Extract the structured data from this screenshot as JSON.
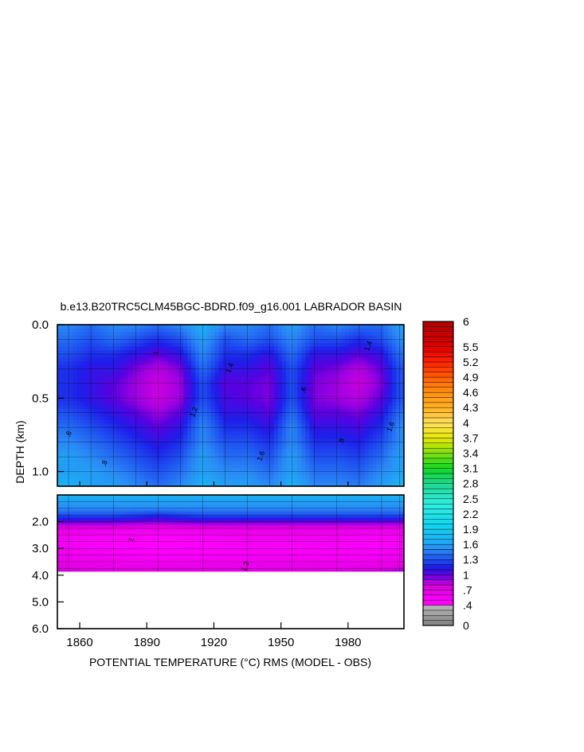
{
  "chart_data": {
    "type": "heatmap",
    "title": "b.e13.B20TRC5CLM45BGC-BDRD.f09_g16.001 LABRADOR BASIN",
    "xlabel": "POTENTIAL TEMPERATURE (°C) RMS (MODEL - OBS)",
    "ylabel": "DEPTH (km)",
    "x_range": [
      1850,
      2005
    ],
    "x_ticks": [
      "1860",
      "1890",
      "1920",
      "1950",
      "1980"
    ],
    "upper_panel": {
      "depth_range": [
        0.0,
        1.1
      ],
      "y_ticks": [
        "0.0",
        "0.5",
        "1.0"
      ],
      "depth_levels": [
        0.0,
        0.1,
        0.2,
        0.3,
        0.4,
        0.5,
        0.6,
        0.7,
        0.8,
        0.9,
        1.0,
        1.1
      ],
      "year_columns": [
        1855,
        1865,
        1875,
        1885,
        1895,
        1905,
        1915,
        1925,
        1935,
        1945,
        1955,
        1965,
        1975,
        1985,
        1995,
        2003
      ],
      "values": [
        [
          1.5,
          1.4,
          1.5,
          1.5,
          1.4,
          1.5,
          1.7,
          1.5,
          1.5,
          1.4,
          1.6,
          1.4,
          1.5,
          1.4,
          1.4,
          1.6
        ],
        [
          1.4,
          1.3,
          1.4,
          1.3,
          1.2,
          1.3,
          1.6,
          1.3,
          1.4,
          1.3,
          1.5,
          1.3,
          1.3,
          1.2,
          1.3,
          1.5
        ],
        [
          1.3,
          1.2,
          1.2,
          1.1,
          1.0,
          1.1,
          1.5,
          1.2,
          1.2,
          1.1,
          1.4,
          1.1,
          1.1,
          1.0,
          1.1,
          1.4
        ],
        [
          1.2,
          1.1,
          1.1,
          0.95,
          0.85,
          0.95,
          1.4,
          1.1,
          1.1,
          1.0,
          1.3,
          1.0,
          0.95,
          0.85,
          1.0,
          1.3
        ],
        [
          1.2,
          1.1,
          1.0,
          0.9,
          0.8,
          0.9,
          1.3,
          1.0,
          1.0,
          0.95,
          1.3,
          0.95,
          0.9,
          0.8,
          0.95,
          1.3
        ],
        [
          1.2,
          1.1,
          1.0,
          0.9,
          0.8,
          0.9,
          1.3,
          1.05,
          1.0,
          0.95,
          1.3,
          0.95,
          0.9,
          0.85,
          1.0,
          1.3
        ],
        [
          1.3,
          1.2,
          1.1,
          1.0,
          0.9,
          1.0,
          1.4,
          1.1,
          1.1,
          1.0,
          1.4,
          1.0,
          1.0,
          0.95,
          1.1,
          1.4
        ],
        [
          1.4,
          1.3,
          1.2,
          1.1,
          1.0,
          1.1,
          1.5,
          1.2,
          1.2,
          1.1,
          1.5,
          1.1,
          1.1,
          1.05,
          1.2,
          1.5
        ],
        [
          1.5,
          1.4,
          1.3,
          1.2,
          1.1,
          1.2,
          1.5,
          1.3,
          1.3,
          1.2,
          1.5,
          1.2,
          1.2,
          1.15,
          1.3,
          1.5
        ],
        [
          1.6,
          1.5,
          1.4,
          1.3,
          1.2,
          1.3,
          1.6,
          1.4,
          1.4,
          1.3,
          1.6,
          1.3,
          1.3,
          1.25,
          1.4,
          1.6
        ],
        [
          1.6,
          1.6,
          1.5,
          1.4,
          1.3,
          1.4,
          1.6,
          1.5,
          1.5,
          1.4,
          1.6,
          1.4,
          1.4,
          1.35,
          1.5,
          1.6
        ],
        [
          1.7,
          1.6,
          1.6,
          1.5,
          1.4,
          1.5,
          1.7,
          1.6,
          1.6,
          1.5,
          1.7,
          1.5,
          1.5,
          1.45,
          1.6,
          1.7
        ]
      ]
    },
    "lower_panel": {
      "depth_range": [
        1.0,
        6.0
      ],
      "y_ticks": [
        "2.0",
        "3.0",
        "4.0",
        "5.0",
        "6.0"
      ],
      "data_bottom_depth": 3.85,
      "depth_levels": [
        1.0,
        1.25,
        1.5,
        1.75,
        2.0,
        2.25,
        2.5,
        2.75,
        3.0,
        3.25,
        3.5,
        3.75,
        3.85
      ],
      "year_columns": [
        1855,
        1875,
        1895,
        1915,
        1935,
        1955,
        1975,
        1995,
        2003
      ],
      "values": [
        [
          1.7,
          1.7,
          1.7,
          1.7,
          1.7,
          1.7,
          1.7,
          1.7,
          1.7
        ],
        [
          1.6,
          1.6,
          1.6,
          1.6,
          1.6,
          1.6,
          1.6,
          1.6,
          1.6
        ],
        [
          1.5,
          1.5,
          1.5,
          1.5,
          1.5,
          1.5,
          1.5,
          1.5,
          1.5
        ],
        [
          1.3,
          1.3,
          1.2,
          1.3,
          1.3,
          1.3,
          1.3,
          1.3,
          1.3
        ],
        [
          1.0,
          1.0,
          0.95,
          1.0,
          1.0,
          1.0,
          1.0,
          1.0,
          1.0
        ],
        [
          0.7,
          0.7,
          0.65,
          0.7,
          0.7,
          0.7,
          0.7,
          0.7,
          0.7
        ],
        [
          0.6,
          0.55,
          0.5,
          0.55,
          0.6,
          0.6,
          0.6,
          0.55,
          0.6
        ],
        [
          0.55,
          0.5,
          0.5,
          0.5,
          0.55,
          0.55,
          0.55,
          0.5,
          0.55
        ],
        [
          0.6,
          0.5,
          0.45,
          0.5,
          0.55,
          0.5,
          0.55,
          0.5,
          0.6
        ],
        [
          0.6,
          0.55,
          0.5,
          0.5,
          0.55,
          0.55,
          0.5,
          0.55,
          0.6
        ],
        [
          0.65,
          0.6,
          0.55,
          0.6,
          0.6,
          0.6,
          0.6,
          0.6,
          0.65
        ],
        [
          0.75,
          0.7,
          0.7,
          0.7,
          0.7,
          0.7,
          0.7,
          0.75,
          0.8
        ],
        [
          0.8,
          0.75,
          0.75,
          0.75,
          0.75,
          0.75,
          0.8,
          0.85,
          0.9
        ]
      ]
    },
    "contour_labels": [
      ".6",
      ".8",
      "1",
      "1.2",
      "1.4",
      "1.6",
      ".6",
      ".8",
      "1.4",
      "1.6",
      "1",
      "1.2"
    ],
    "colorbar": {
      "range": [
        0,
        6
      ],
      "tick_labels": [
        "6",
        "5.5",
        "5.2",
        "4.9",
        "4.6",
        "4.3",
        "4",
        "3.7",
        "3.4",
        "3.1",
        "2.8",
        "2.5",
        "2.2",
        "1.9",
        "1.6",
        "1.3",
        "1",
        ".7",
        ".4",
        "0"
      ],
      "stops": [
        {
          "v": 0.0,
          "c": "#808080"
        },
        {
          "v": 0.4,
          "c": "#b8b8b8"
        },
        {
          "v": 0.45,
          "c": "#ff00ff"
        },
        {
          "v": 0.75,
          "c": "#e000e0"
        },
        {
          "v": 0.9,
          "c": "#a000e0"
        },
        {
          "v": 1.0,
          "c": "#5a00e0"
        },
        {
          "v": 1.15,
          "c": "#1e1ee8"
        },
        {
          "v": 1.3,
          "c": "#1e50f0"
        },
        {
          "v": 1.5,
          "c": "#2a8af5"
        },
        {
          "v": 1.7,
          "c": "#1ab4f5"
        },
        {
          "v": 2.0,
          "c": "#10d8f0"
        },
        {
          "v": 2.4,
          "c": "#30f0e0"
        },
        {
          "v": 2.8,
          "c": "#20d890"
        },
        {
          "v": 3.1,
          "c": "#10d820"
        },
        {
          "v": 3.4,
          "c": "#80e010"
        },
        {
          "v": 3.7,
          "c": "#e8e800"
        },
        {
          "v": 4.0,
          "c": "#ffe060"
        },
        {
          "v": 4.3,
          "c": "#ffb020"
        },
        {
          "v": 4.6,
          "c": "#ff9010"
        },
        {
          "v": 4.9,
          "c": "#ff6000"
        },
        {
          "v": 5.2,
          "c": "#ff2000"
        },
        {
          "v": 5.5,
          "c": "#e00000"
        },
        {
          "v": 6.0,
          "c": "#b00000"
        }
      ]
    },
    "colors": {
      "no_data": "#ffffff",
      "axis": "#000000"
    }
  }
}
